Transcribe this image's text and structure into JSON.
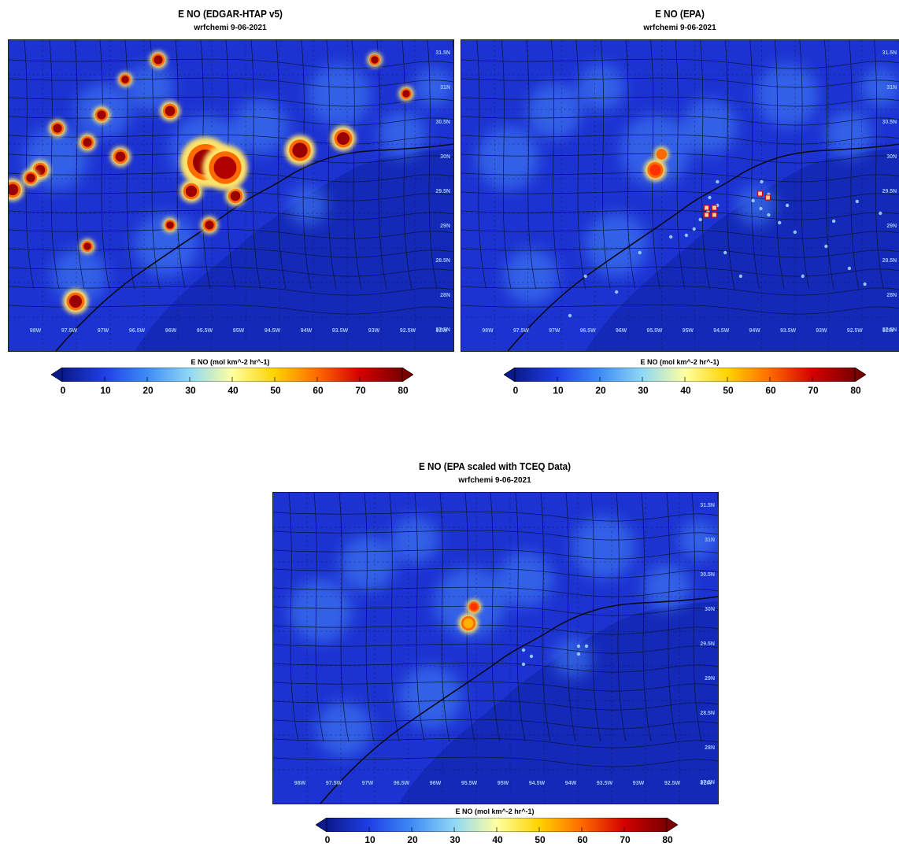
{
  "colorbar": {
    "label": "E NO (mol km^-2 hr^-1)",
    "ticks": [
      "0",
      "10",
      "20",
      "30",
      "40",
      "50",
      "60",
      "70",
      "80"
    ],
    "range": [
      0,
      80
    ],
    "colors": [
      "#0a1a8c",
      "#1f3fe6",
      "#3e8cf5",
      "#8fd8f7",
      "#ffffa0",
      "#ffd300",
      "#ff6a00",
      "#d40000",
      "#7a0000"
    ]
  },
  "panels": [
    {
      "id": "edgar",
      "title": "E NO (EDGAR-HTAP v5)",
      "subtitle": "wrfchemi  9-06-2021",
      "lat_labels": [
        "31.5N",
        "31N",
        "30.5N",
        "30N",
        "29.5N",
        "29N",
        "28.5N",
        "28N",
        "27.5N"
      ],
      "lon_labels": [
        "98W",
        "97.5W",
        "97W",
        "96.5W",
        "96W",
        "95.5W",
        "95W",
        "94.5W",
        "94W",
        "93.5W",
        "93W",
        "92.5W",
        "92W"
      ]
    },
    {
      "id": "epa",
      "title": "E NO (EPA)",
      "subtitle": "wrfchemi  9-06-2021",
      "lat_labels": [
        "31.5N",
        "31N",
        "30.5N",
        "30N",
        "29.5N",
        "29N",
        "28.5N",
        "28N",
        "27.5N"
      ],
      "lon_labels": [
        "98W",
        "97.5W",
        "97W",
        "96.5W",
        "96W",
        "95.5W",
        "95W",
        "94.5W",
        "94W",
        "93.5W",
        "93W",
        "92.5W",
        "92W"
      ]
    },
    {
      "id": "tceq",
      "title": "E NO (EPA scaled with TCEQ Data)",
      "subtitle": "wrfchemi  9-06-2021",
      "lat_labels": [
        "31.5N",
        "31N",
        "30.5N",
        "30N",
        "29.5N",
        "29N",
        "28.5N",
        "28N",
        "27.5N"
      ],
      "lon_labels": [
        "98W",
        "97.5W",
        "97W",
        "96.5W",
        "96W",
        "95.5W",
        "95W",
        "94.5W",
        "94W",
        "93.5W",
        "93W",
        "92.5W",
        "92W"
      ]
    }
  ]
}
